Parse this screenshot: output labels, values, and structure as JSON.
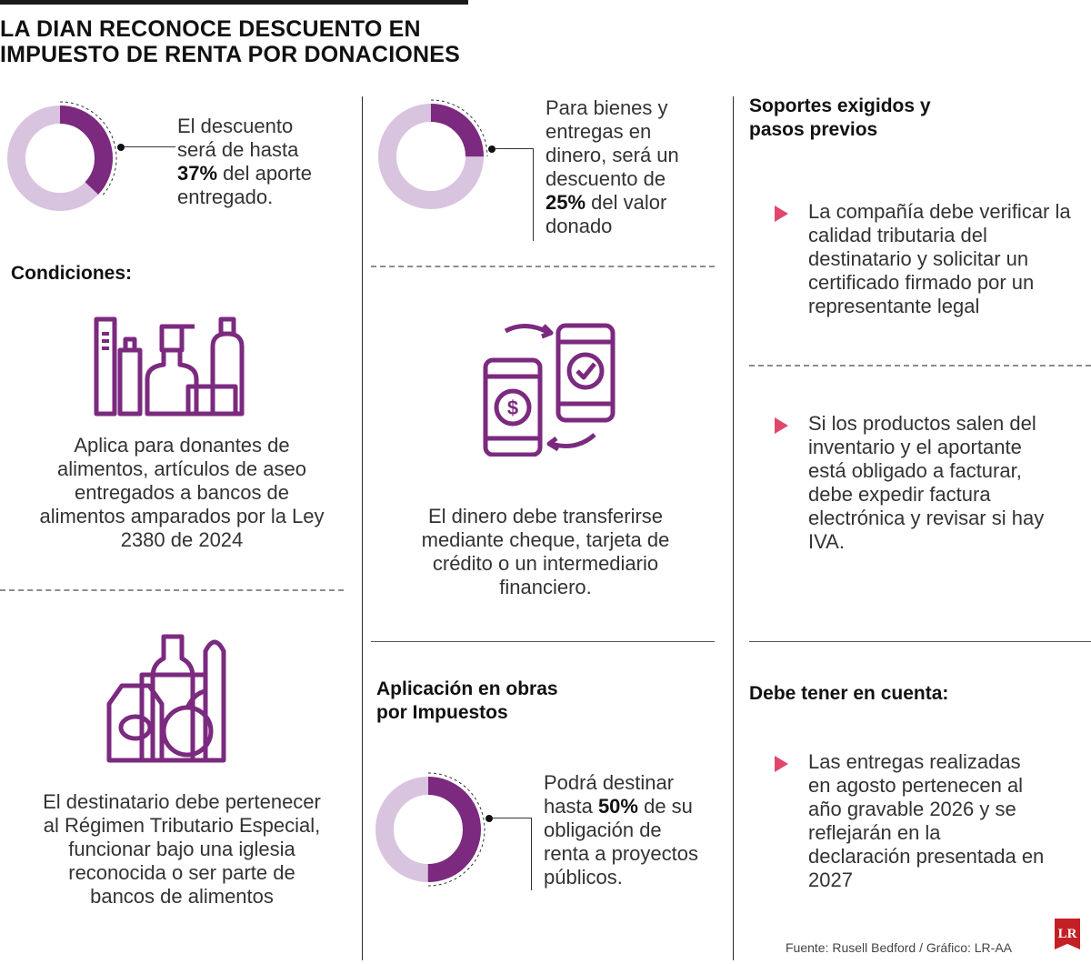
{
  "title": {
    "line1": "LA DIAN RECONOCE DESCUENTO EN",
    "line2": "IMPUESTO DE RENTA POR DONACIONES"
  },
  "colors": {
    "accent": "#7b2a7f",
    "accent_light": "#d9c4df",
    "bullet": "#e0476b"
  },
  "col1": {
    "discount": {
      "before": "El descuento\nserá de hasta\n",
      "value": "37%",
      "after": " del aporte\nentregado.",
      "fraction": 0.37
    },
    "conditions_heading": "Condiciones:",
    "icon_toiletries": "toiletries-icon",
    "condition_1": "Aplica para donantes de alimentos, artículos de aseo entregados a bancos de alimentos amparados por la Ley 2380 de 2024",
    "icon_groceries": "groceries-icon",
    "condition_2": "El destinatario debe pertenecer al Régimen Tributario Especial, funcionar bajo una iglesia reconocida o ser parte de bancos de alimentos"
  },
  "col2": {
    "discount": {
      "before": "Para bienes y\nentregas en\ndinero, será un\ndescuento de\n",
      "value": "25%",
      "after": " del valor\ndonado",
      "fraction": 0.25
    },
    "icon_payment": "mobile-payment-icon",
    "money_text": "El dinero debe transferirse mediante cheque, tarjeta de crédito o un intermediario financiero.",
    "obras_heading_1": "Aplicación en obras",
    "obras_heading_2": "por Impuestos",
    "obras": {
      "before": "Podrá destinar\nhasta ",
      "value": "50%",
      "after": " de su\nobligación de\nrenta a proyectos\npúblicos.",
      "fraction": 0.5
    }
  },
  "col3": {
    "soportes_heading_1": "Soportes exigidos y",
    "soportes_heading_2": "pasos previos",
    "bullet_1": "La compañía debe verificar la calidad tributaria del destinatario y solicitar un certificado firmado por un representante legal",
    "bullet_2": "Si los productos salen del inventario y el aportante está obligado a facturar, debe expedir factura electrónica y revisar si hay IVA.",
    "cuenta_heading": "Debe tener en cuenta:",
    "bullet_3": "Las entregas realizadas en agosto pertenecen al año gravable 2026 y se reflejarán en la declaración presentada en 2027"
  },
  "footer": {
    "source": "Fuente: Rusell Bedford / Gráfico: LR-AA",
    "logo": "LR"
  }
}
